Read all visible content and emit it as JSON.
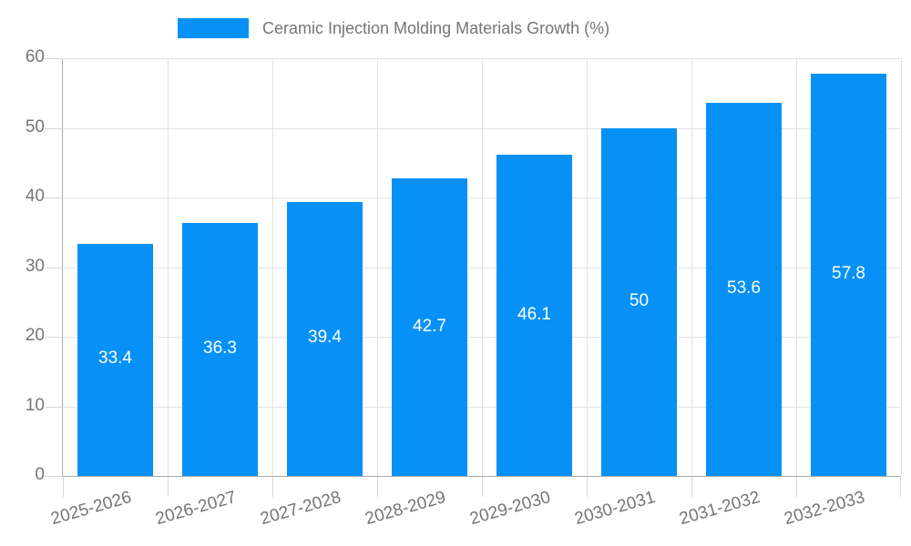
{
  "legend": {
    "label": "Ceramic Injection Molding Materials Growth (%)"
  },
  "chart_data": {
    "type": "bar",
    "title": "Ceramic Injection Molding Materials Growth (%)",
    "categories": [
      "2025-2026",
      "2026-2027",
      "2027-2028",
      "2028-2029",
      "2029-2030",
      "2030-2031",
      "2031-2032",
      "2032-2033"
    ],
    "values": [
      33.4,
      36.3,
      39.4,
      42.7,
      46.1,
      50,
      53.6,
      57.8
    ],
    "value_labels": [
      "33.4",
      "36.3",
      "39.4",
      "42.7",
      "46.1",
      "50",
      "53.6",
      "57.8"
    ],
    "xlabel": "",
    "ylabel": "",
    "ylim": [
      0,
      60
    ],
    "yticks": [
      0,
      10,
      20,
      30,
      40,
      50,
      60
    ],
    "grid": true,
    "legend_position": "top",
    "bar_color": "#0791f7",
    "value_label_color": "#ffffff",
    "axis_text_color": "#757575",
    "gridline_color": "#e2e2e2",
    "tick_color": "#d6d6d6",
    "axis_line_color": "#aaaaaa"
  }
}
